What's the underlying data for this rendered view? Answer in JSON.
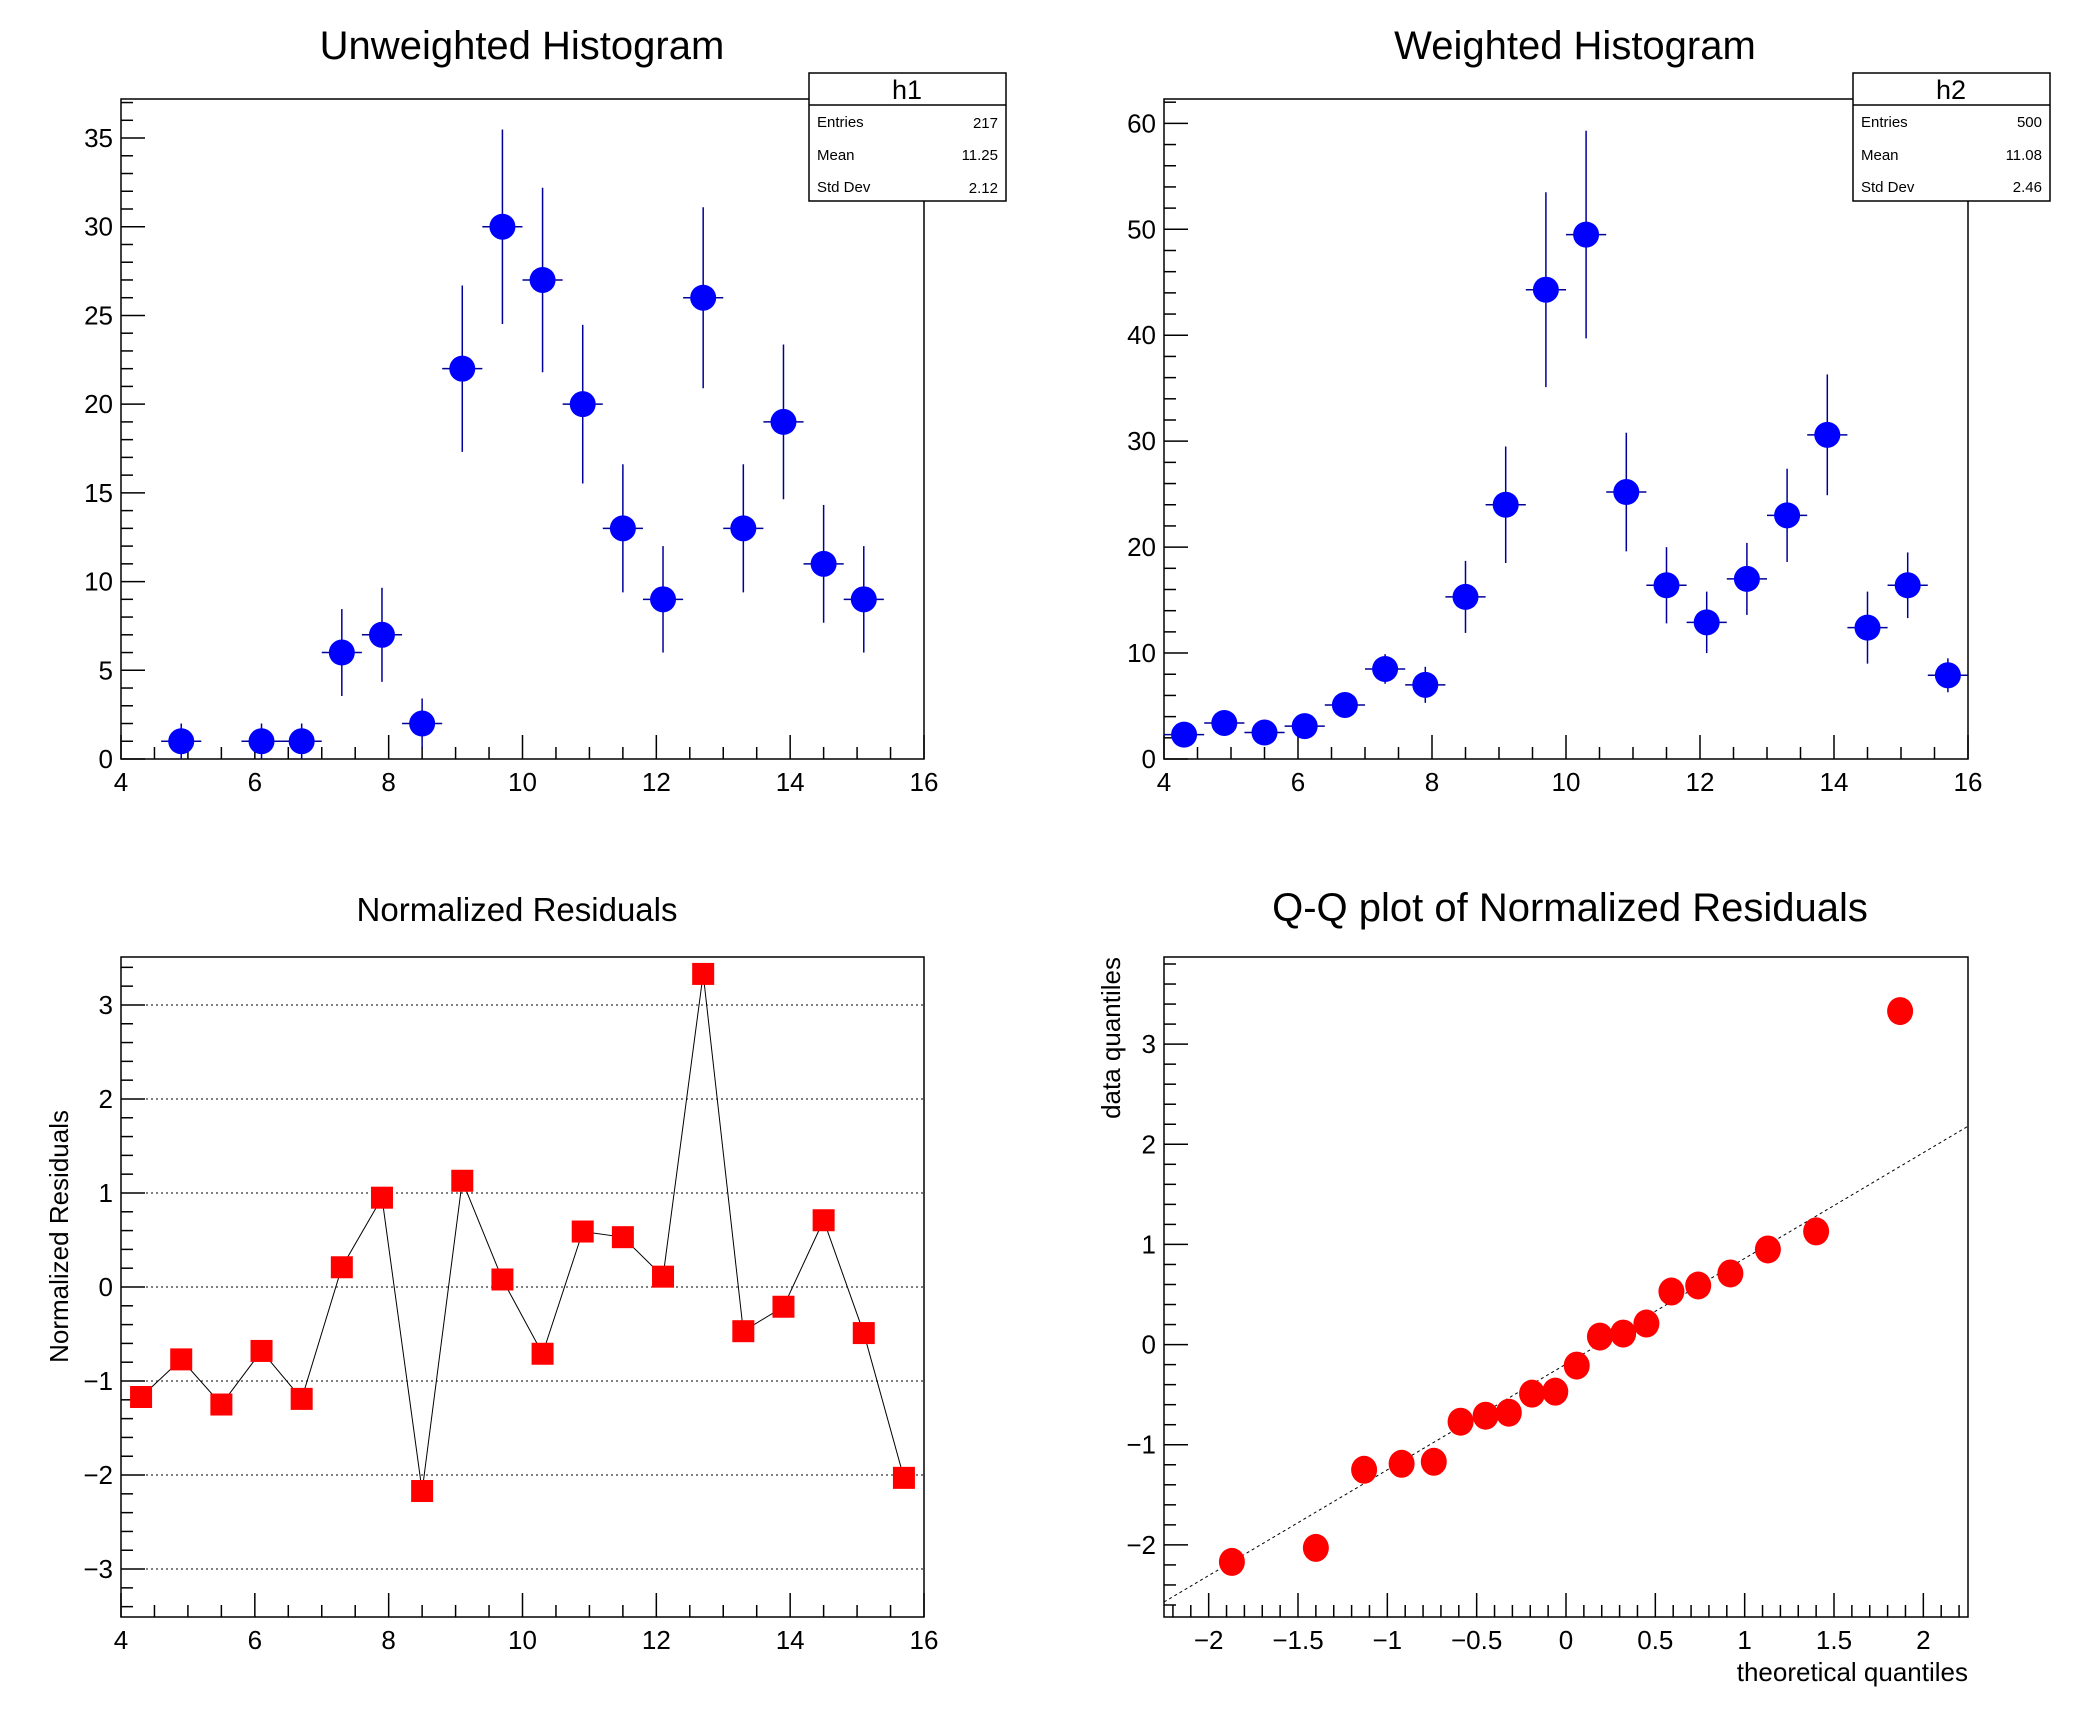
{
  "chart_data": [
    {
      "id": "h1",
      "type": "scatter",
      "subtype": "histogram-errorbars",
      "title": "Unweighted Histogram",
      "xlabel": "",
      "ylabel": "",
      "xlim": [
        4,
        16
      ],
      "ylim": [
        0,
        37.2
      ],
      "bin_width": 0.6,
      "x": [
        4.3,
        4.9,
        5.5,
        6.1,
        6.7,
        7.3,
        7.9,
        8.5,
        9.1,
        9.7,
        10.3,
        10.9,
        11.5,
        12.1,
        12.7,
        13.3,
        13.9,
        14.5,
        15.1,
        15.7
      ],
      "values": [
        0,
        1,
        0,
        1,
        1,
        6,
        7,
        2,
        22,
        30,
        27,
        20,
        13,
        9,
        26,
        13,
        19,
        11,
        9,
        0
      ],
      "errors": [
        0,
        1,
        0,
        1,
        1,
        2.45,
        2.65,
        1.41,
        4.69,
        5.48,
        5.2,
        4.47,
        3.61,
        3,
        5.1,
        3.61,
        4.36,
        3.32,
        3,
        0
      ],
      "xticks": [
        "4",
        "6",
        "8",
        "10",
        "12",
        "14",
        "16"
      ],
      "yticks": [
        "0",
        "5",
        "10",
        "15",
        "20",
        "25",
        "30",
        "35"
      ],
      "marker_color": "#0000ff",
      "errorbar_color": "#000099",
      "stats": {
        "name": "h1",
        "rows": [
          {
            "label": "Entries",
            "value": "217"
          },
          {
            "label": "Mean",
            "value": "11.25"
          },
          {
            "label": "Std Dev",
            "value": "2.12"
          }
        ]
      }
    },
    {
      "id": "h2",
      "type": "scatter",
      "subtype": "histogram-errorbars",
      "title": "Weighted Histogram",
      "xlabel": "",
      "ylabel": "",
      "xlim": [
        4,
        16
      ],
      "ylim": [
        0,
        62.3
      ],
      "bin_width": 0.6,
      "x": [
        4.3,
        4.9,
        5.5,
        6.1,
        6.7,
        7.3,
        7.9,
        8.5,
        9.1,
        9.7,
        10.3,
        10.9,
        11.5,
        12.1,
        12.7,
        13.3,
        13.9,
        14.5,
        15.1,
        15.7
      ],
      "values": [
        2.3,
        3.4,
        2.5,
        3.1,
        5.1,
        8.5,
        7.0,
        15.3,
        24.0,
        44.3,
        49.5,
        25.2,
        16.4,
        12.9,
        17.0,
        23.0,
        30.6,
        12.4,
        16.4,
        7.9
      ],
      "errors": [
        0.5,
        0.6,
        0.5,
        0.6,
        0.8,
        1.4,
        1.7,
        3.4,
        5.5,
        9.2,
        9.8,
        5.6,
        3.6,
        2.9,
        3.4,
        4.4,
        5.7,
        3.4,
        3.1,
        1.6
      ],
      "xticks": [
        "4",
        "6",
        "8",
        "10",
        "12",
        "14",
        "16"
      ],
      "yticks": [
        "0",
        "10",
        "20",
        "30",
        "40",
        "50",
        "60"
      ],
      "marker_color": "#0000ff",
      "errorbar_color": "#000099",
      "stats": {
        "name": "h2",
        "rows": [
          {
            "label": "Entries",
            "value": "500"
          },
          {
            "label": "Mean",
            "value": "11.08"
          },
          {
            "label": "Std Dev",
            "value": "2.46"
          }
        ]
      }
    },
    {
      "id": "residuals",
      "type": "line",
      "title": "Normalized Residuals",
      "xlabel": "",
      "ylabel": "Normalized Residuals",
      "xlim": [
        4,
        16
      ],
      "ylim": [
        -3.51,
        3.51
      ],
      "grid": "y",
      "x": [
        4.3,
        4.9,
        5.5,
        6.1,
        6.7,
        7.3,
        7.9,
        8.5,
        9.1,
        9.7,
        10.3,
        10.9,
        11.5,
        12.1,
        12.7,
        13.3,
        13.9,
        14.5,
        15.1,
        15.7
      ],
      "values": [
        -1.17,
        -0.77,
        -1.25,
        -0.68,
        -1.19,
        0.21,
        0.95,
        -2.17,
        1.13,
        0.08,
        -0.71,
        0.59,
        0.53,
        0.11,
        3.33,
        -0.47,
        -0.21,
        0.71,
        -0.49,
        -2.03
      ],
      "xticks": [
        "4",
        "6",
        "8",
        "10",
        "12",
        "14",
        "16"
      ],
      "yticks": [
        "−3",
        "−2",
        "−1",
        "0",
        "1",
        "2",
        "3"
      ],
      "marker_color": "#ff0000",
      "line_color": "#000000"
    },
    {
      "id": "qq",
      "type": "scatter",
      "title": "Q-Q plot of Normalized Residuals",
      "xlabel": "theoretical quantiles",
      "ylabel": "data quantiles",
      "xlim": [
        -2.25,
        2.25
      ],
      "ylim": [
        -2.72,
        3.87
      ],
      "x": [
        -1.87,
        -1.4,
        -1.13,
        -0.92,
        -0.74,
        -0.59,
        -0.45,
        -0.32,
        -0.19,
        -0.06,
        0.06,
        0.19,
        0.32,
        0.45,
        0.59,
        0.74,
        0.92,
        1.13,
        1.4,
        1.87
      ],
      "values": [
        -2.17,
        -2.03,
        -1.25,
        -1.19,
        -1.17,
        -0.77,
        -0.71,
        -0.68,
        -0.49,
        -0.47,
        -0.21,
        0.08,
        0.11,
        0.21,
        0.53,
        0.59,
        0.71,
        0.95,
        1.13,
        3.33
      ],
      "reference_line": {
        "from": [
          -2.25,
          -2.57
        ],
        "to": [
          2.25,
          2.18
        ],
        "style": "dotted"
      },
      "xticks": [
        "−2",
        "−1.5",
        "−1",
        "−0.5",
        "0",
        "0.5",
        "1",
        "1.5",
        "2"
      ],
      "yticks": [
        "−2",
        "−1",
        "0",
        "1",
        "2",
        "3"
      ],
      "marker_color": "#ff0000"
    }
  ]
}
